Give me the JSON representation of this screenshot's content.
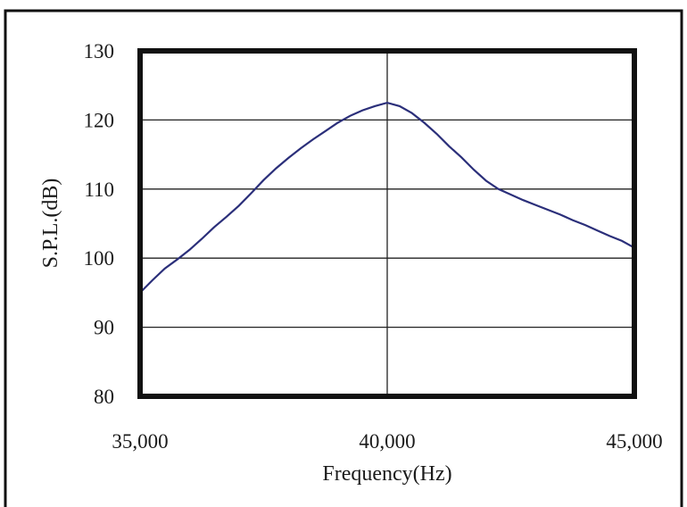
{
  "chart_data": {
    "type": "line",
    "title": "",
    "xlabel": "Frequency(Hz)",
    "ylabel": "S.P.L.(dB)",
    "xlim": [
      35000,
      45000
    ],
    "ylim": [
      80,
      130
    ],
    "x_ticks": [
      35000,
      40000,
      45000
    ],
    "x_tick_labels": [
      "35,000",
      "40,000",
      "45,000"
    ],
    "y_ticks": [
      80,
      90,
      100,
      110,
      120,
      130
    ],
    "y_tick_labels": [
      "80",
      "90",
      "100",
      "110",
      "120",
      "130"
    ],
    "grid": true,
    "legend": "none",
    "series_color": "#2b2f7a",
    "series": [
      {
        "x": [
          35000,
          35250,
          35500,
          35750,
          36000,
          36250,
          36500,
          36750,
          37000,
          37250,
          37500,
          37750,
          38000,
          38250,
          38500,
          38750,
          39000,
          39250,
          39500,
          39750,
          40000,
          40250,
          40500,
          40750,
          41000,
          41250,
          41500,
          41750,
          42000,
          42250,
          42500,
          42750,
          43000,
          43250,
          43500,
          43750,
          44000,
          44250,
          44500,
          44750,
          45000
        ],
        "y": [
          95.0,
          96.8,
          98.5,
          99.8,
          101.2,
          102.8,
          104.5,
          106.0,
          107.6,
          109.4,
          111.3,
          113.0,
          114.5,
          115.9,
          117.2,
          118.4,
          119.6,
          120.6,
          121.4,
          122.0,
          122.5,
          122.0,
          121.0,
          119.6,
          118.0,
          116.2,
          114.6,
          112.8,
          111.2,
          110.0,
          109.2,
          108.4,
          107.7,
          107.0,
          106.3,
          105.5,
          104.8,
          104.0,
          103.2,
          102.5,
          101.5
        ]
      }
    ]
  }
}
